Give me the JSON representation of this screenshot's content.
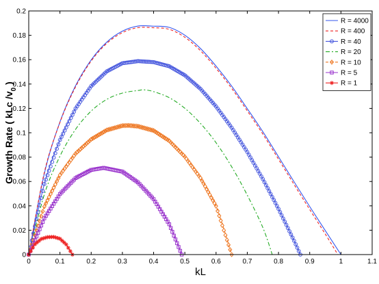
{
  "chart_data": {
    "type": "line",
    "title": "",
    "xlabel": "kL",
    "ylabel": "Growth Rate ( kLc /v",
    "ylabel_sub": "0",
    "ylabel_close": " )",
    "xlim": [
      0,
      1.1
    ],
    "ylim": [
      0,
      0.2
    ],
    "x_ticks": [
      "0",
      "0.1",
      "0.2",
      "0.3",
      "0.4",
      "0.5",
      "0.6",
      "0.7",
      "0.8",
      "0.9",
      "1",
      "1.1"
    ],
    "y_ticks": [
      "0",
      "0.02",
      "0.04",
      "0.06",
      "0.08",
      "0.1",
      "0.12",
      "0.14",
      "0.16",
      "0.18",
      "0.2"
    ],
    "grid": false,
    "legend_position": "top-right",
    "series": [
      {
        "name": "R = 4000",
        "color": "#3355ee",
        "dash": "solid",
        "marker": "none",
        "x": [
          0,
          0.05,
          0.1,
          0.15,
          0.2,
          0.25,
          0.3,
          0.35,
          0.4,
          0.45,
          0.5,
          0.55,
          0.6,
          0.65,
          0.7,
          0.75,
          0.8,
          0.85,
          0.9,
          0.95,
          1.0
        ],
        "y": [
          0,
          0.0665,
          0.1089,
          0.1386,
          0.1598,
          0.1744,
          0.1834,
          0.1876,
          0.1875,
          0.1865,
          0.1801,
          0.1692,
          0.1547,
          0.1383,
          0.1198,
          0.1008,
          0.0803,
          0.0597,
          0.0394,
          0.0196,
          0
        ]
      },
      {
        "name": "R = 400",
        "color": "#ee2222",
        "dash": "dashed",
        "marker": "none",
        "x": [
          0,
          0.05,
          0.1,
          0.15,
          0.2,
          0.25,
          0.3,
          0.35,
          0.4,
          0.45,
          0.5,
          0.55,
          0.6,
          0.65,
          0.7,
          0.75,
          0.8,
          0.85,
          0.9,
          0.95,
          0.99
        ],
        "y": [
          0,
          0.0675,
          0.1085,
          0.1377,
          0.1589,
          0.1734,
          0.1822,
          0.1863,
          0.1862,
          0.1849,
          0.1784,
          0.1674,
          0.1529,
          0.1365,
          0.118,
          0.0989,
          0.0783,
          0.0575,
          0.037,
          0.0168,
          0
        ]
      },
      {
        "name": "R = 40",
        "color": "#4455dd",
        "dash": "solid",
        "marker": "circle",
        "x": [
          0,
          0.05,
          0.1,
          0.15,
          0.2,
          0.25,
          0.3,
          0.35,
          0.4,
          0.45,
          0.5,
          0.55,
          0.6,
          0.65,
          0.7,
          0.75,
          0.8,
          0.85,
          0.87
        ],
        "y": [
          0,
          0.058,
          0.0941,
          0.1199,
          0.1383,
          0.1504,
          0.1571,
          0.1588,
          0.158,
          0.1546,
          0.1472,
          0.1361,
          0.1216,
          0.1042,
          0.0842,
          0.0619,
          0.0375,
          0.0113,
          0
        ]
      },
      {
        "name": "R = 20",
        "color": "#22aa22",
        "dash": "dashdot",
        "marker": "none",
        "x": [
          0,
          0.05,
          0.1,
          0.15,
          0.2,
          0.25,
          0.3,
          0.35,
          0.37,
          0.4,
          0.45,
          0.5,
          0.55,
          0.6,
          0.65,
          0.7,
          0.75,
          0.78
        ],
        "y": [
          0,
          0.0494,
          0.0808,
          0.1028,
          0.1178,
          0.1274,
          0.1326,
          0.1347,
          0.1352,
          0.1338,
          0.1288,
          0.1201,
          0.1077,
          0.0918,
          0.0721,
          0.0488,
          0.0221,
          0
        ]
      },
      {
        "name": "R = 10",
        "color": "#ee7722",
        "dash": "dashed",
        "marker": "diamond",
        "x": [
          0,
          0.05,
          0.1,
          0.15,
          0.2,
          0.25,
          0.3,
          0.32,
          0.35,
          0.4,
          0.45,
          0.5,
          0.55,
          0.6,
          0.65
        ],
        "y": [
          0,
          0.0394,
          0.0653,
          0.0829,
          0.0946,
          0.1022,
          0.1058,
          0.106,
          0.1053,
          0.1018,
          0.0934,
          0.0804,
          0.0629,
          0.0398,
          0
        ]
      },
      {
        "name": "R = 5",
        "color": "#9933cc",
        "dash": "solid",
        "marker": "square",
        "x": [
          0,
          0.05,
          0.1,
          0.15,
          0.2,
          0.24,
          0.3,
          0.35,
          0.4,
          0.45,
          0.49
        ],
        "y": [
          0,
          0.0298,
          0.0497,
          0.0628,
          0.0695,
          0.0712,
          0.0681,
          0.0592,
          0.0455,
          0.0249,
          0
        ]
      },
      {
        "name": "R = 1",
        "color": "#ee2222",
        "dash": "solid",
        "marker": "star",
        "x": [
          0,
          0.02,
          0.04,
          0.06,
          0.08,
          0.1,
          0.12,
          0.14
        ],
        "y": [
          0,
          0.0085,
          0.0128,
          0.0143,
          0.0145,
          0.013,
          0.0083,
          0
        ]
      }
    ]
  }
}
